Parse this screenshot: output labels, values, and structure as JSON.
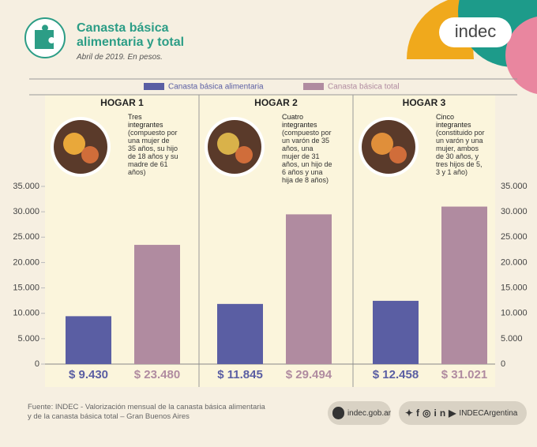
{
  "header": {
    "logo": "indec"
  },
  "chart_data": {
    "type": "bar",
    "title": "Canasta básica alimentaria y total",
    "subtitle": "Abril de 2019. En pesos.",
    "categories": [
      "HOGAR 1",
      "HOGAR 2",
      "HOGAR 3"
    ],
    "descriptions": [
      {
        "title": "Tres integrantes",
        "detail": "(compuesto por una mujer de 35 años, su hijo de 18 años y su madre de 61 años)"
      },
      {
        "title": "Cuatro integrantes",
        "detail": "(compuesto por un varón de 35 años, una mujer de 31 años, un hijo de 6 años y una hija de 8 años)"
      },
      {
        "title": "Cinco integrantes",
        "detail": "(constituido por un varón y una mujer, ambos de 30 años, y tres hijos de 5, 3 y 1 año)"
      }
    ],
    "series": [
      {
        "name": "Canasta básica alimentaria",
        "color": "#5a5ea3",
        "values": [
          9430,
          11845,
          12458
        ],
        "value_labels": [
          "$ 9.430",
          "$ 11.845",
          "$ 12.458"
        ]
      },
      {
        "name": "Canasta básica total",
        "color": "#b08ba0",
        "values": [
          23480,
          29494,
          31021
        ],
        "value_labels": [
          "$ 23.480",
          "$ 29.494",
          "$ 31.021"
        ]
      }
    ],
    "ylim": [
      0,
      35000
    ],
    "yticks": [
      0,
      {
        "value": 5000,
        "label": "5.000"
      },
      {
        "value": 10000,
        "label": "10.000"
      },
      {
        "value": 15000,
        "label": "15.000"
      },
      {
        "value": 20000,
        "label": "20.000"
      },
      {
        "value": 25000,
        "label": "25.000"
      },
      {
        "value": 30000,
        "label": "30.000"
      },
      {
        "value": 35000,
        "label": "35.000"
      }
    ]
  },
  "footer": {
    "source": "Fuente: INDEC - Valorización mensual de la canasta básica alimentaria y de la canasta básica total – Gran Buenos Aires",
    "website": "indec.gob.ar",
    "social": "INDECArgentina"
  }
}
